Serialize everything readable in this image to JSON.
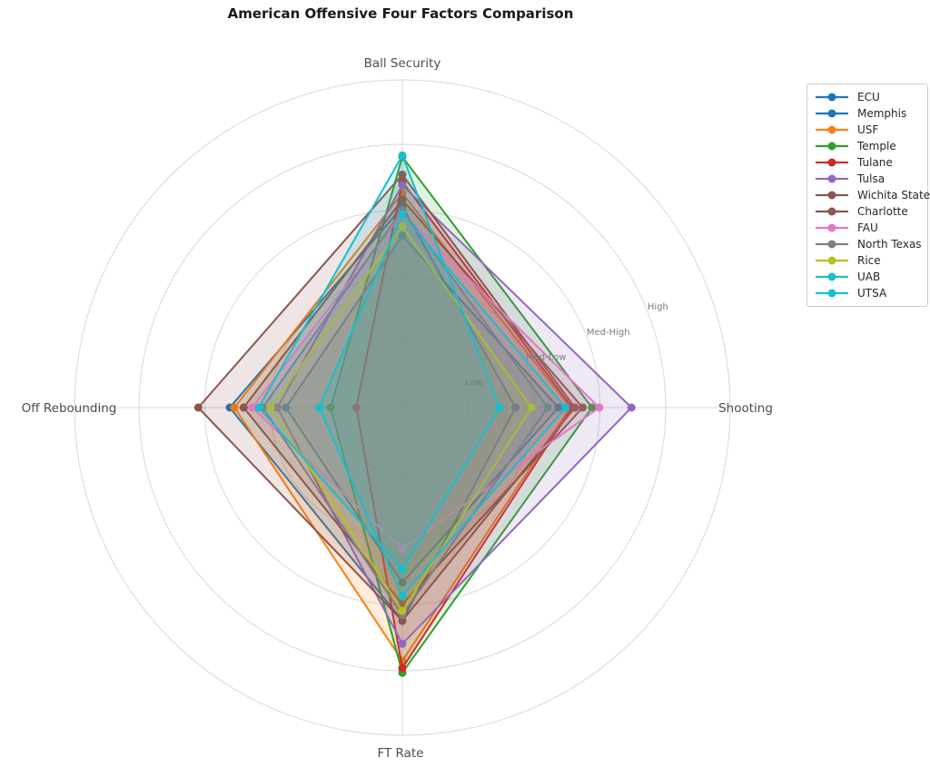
{
  "title": "American Offensive Four Factors Comparison",
  "chart_data": {
    "type": "radar",
    "axes": [
      "Ball Security",
      "Shooting",
      "FT Rate",
      "Off Rebounding"
    ],
    "axis_angles_deg": [
      90,
      0,
      270,
      180
    ],
    "tick_labels": [
      "Low",
      "Med-Low",
      "Med-High",
      "High"
    ],
    "tick_values": [
      1,
      2,
      3,
      4
    ],
    "rmax": 4.97,
    "grid_color": "#d8d8d8",
    "tick_label_color": "#7a7a7a",
    "axis_label_color": "#4d4d4d",
    "fill_opacity": 0.15,
    "legend_position": "upper right",
    "series": [
      {
        "name": "ECU",
        "color": "#1f77b4",
        "values": [
          2.61,
          2.37,
          2.66,
          1.77
        ]
      },
      {
        "name": "Memphis",
        "color": "#1f77b4",
        "values": [
          3.05,
          1.72,
          3.24,
          2.62
        ]
      },
      {
        "name": "USF",
        "color": "#ff7f0e",
        "values": [
          3.26,
          2.55,
          3.85,
          2.55
        ]
      },
      {
        "name": "Temple",
        "color": "#2ca02c",
        "values": [
          3.81,
          2.88,
          4.03,
          1.09
        ]
      },
      {
        "name": "Tulane",
        "color": "#d62728",
        "values": [
          3.43,
          2.58,
          3.96,
          0.7
        ]
      },
      {
        "name": "Tulsa",
        "color": "#9467bd",
        "values": [
          3.38,
          3.48,
          3.59,
          1.9
        ]
      },
      {
        "name": "Wichita State",
        "color": "#8c564b",
        "values": [
          3.54,
          2.62,
          3.24,
          3.1
        ]
      },
      {
        "name": "Charlotte",
        "color": "#8c564b",
        "values": [
          3.16,
          2.74,
          2.99,
          2.41
        ]
      },
      {
        "name": "FAU",
        "color": "#e377c2",
        "values": [
          2.95,
          2.99,
          2.15,
          2.28
        ]
      },
      {
        "name": "North Texas",
        "color": "#7f7f7f",
        "values": [
          3.0,
          2.21,
          3.15,
          2.12
        ]
      },
      {
        "name": "Rice",
        "color": "#bcbd22",
        "values": [
          2.75,
          1.96,
          3.09,
          2.0
        ]
      },
      {
        "name": "UAB",
        "color": "#17becf",
        "values": [
          3.83,
          1.48,
          2.46,
          2.18
        ]
      },
      {
        "name": "UTSA",
        "color": "#17becf",
        "values": [
          2.94,
          2.48,
          2.86,
          1.26
        ]
      }
    ]
  }
}
